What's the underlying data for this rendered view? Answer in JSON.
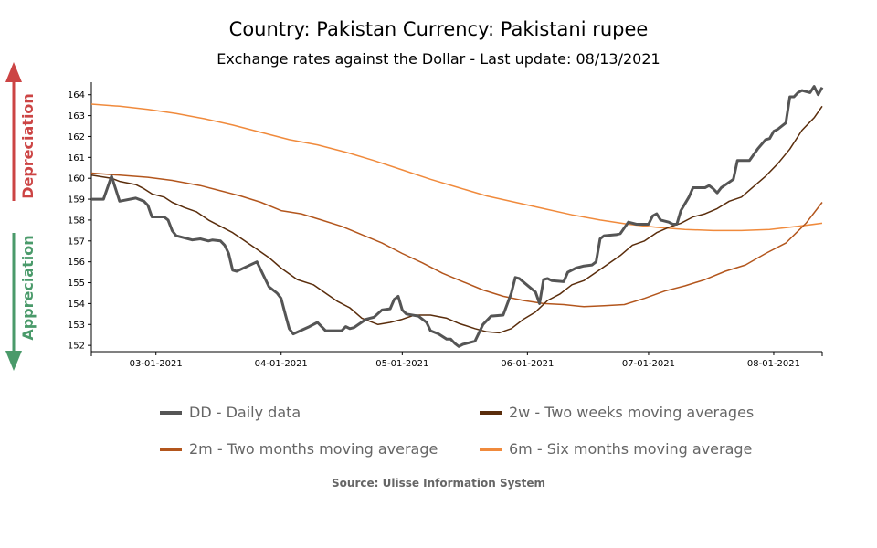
{
  "chart_data": {
    "type": "line",
    "title": "Country: Pakistan Currency: Pakistani rupee",
    "subtitle": "Exchange rates against the Dollar - Last update: 08/13/2021",
    "source": "Source: Ulisse Information System",
    "side_labels": {
      "up": "Depreciation",
      "down": "Appreciation",
      "up_color": "#cc4444",
      "down_color": "#4a9a6a"
    },
    "xlim": [
      "2021-02-13",
      "2021-08-13"
    ],
    "ylim": [
      151.7,
      164.6
    ],
    "x_ticks": [
      {
        "date": "2021-03-01",
        "label": "03-01-2021"
      },
      {
        "date": "2021-04-01",
        "label": "04-01-2021"
      },
      {
        "date": "2021-05-01",
        "label": "05-01-2021"
      },
      {
        "date": "2021-06-01",
        "label": "06-01-2021"
      },
      {
        "date": "2021-07-01",
        "label": "07-01-2021"
      },
      {
        "date": "2021-08-01",
        "label": "08-01-2021"
      }
    ],
    "y_ticks": [
      152,
      153,
      154,
      155,
      156,
      157,
      158,
      159,
      160,
      161,
      162,
      163,
      164
    ],
    "series": [
      {
        "name": "DD - Daily data",
        "color": "#555555",
        "width": 3,
        "points": [
          [
            "2021-02-13",
            159.0
          ],
          [
            "2021-02-16",
            159.0
          ],
          [
            "2021-02-18",
            160.1
          ],
          [
            "2021-02-20",
            158.9
          ],
          [
            "2021-02-24",
            159.05
          ],
          [
            "2021-02-26",
            158.9
          ],
          [
            "2021-02-27",
            158.7
          ],
          [
            "2021-02-28",
            158.15
          ],
          [
            "2021-03-03",
            158.15
          ],
          [
            "2021-03-04",
            158.0
          ],
          [
            "2021-03-05",
            157.5
          ],
          [
            "2021-03-06",
            157.25
          ],
          [
            "2021-03-10",
            157.05
          ],
          [
            "2021-03-12",
            157.1
          ],
          [
            "2021-03-14",
            157.0
          ],
          [
            "2021-03-15",
            157.05
          ],
          [
            "2021-03-17",
            157.0
          ],
          [
            "2021-03-18",
            156.8
          ],
          [
            "2021-03-19",
            156.4
          ],
          [
            "2021-03-20",
            155.6
          ],
          [
            "2021-03-21",
            155.55
          ],
          [
            "2021-03-26",
            156.0
          ],
          [
            "2021-03-29",
            154.8
          ],
          [
            "2021-03-31",
            154.5
          ],
          [
            "2021-04-01",
            154.25
          ],
          [
            "2021-04-02",
            153.5
          ],
          [
            "2021-04-03",
            152.8
          ],
          [
            "2021-04-04",
            152.55
          ],
          [
            "2021-04-08",
            152.9
          ],
          [
            "2021-04-10",
            153.1
          ],
          [
            "2021-04-12",
            152.7
          ],
          [
            "2021-04-15",
            152.7
          ],
          [
            "2021-04-16",
            152.7
          ],
          [
            "2021-04-17",
            152.9
          ],
          [
            "2021-04-18",
            152.8
          ],
          [
            "2021-04-19",
            152.85
          ],
          [
            "2021-04-22",
            153.25
          ],
          [
            "2021-04-24",
            153.35
          ],
          [
            "2021-04-26",
            153.7
          ],
          [
            "2021-04-28",
            153.75
          ],
          [
            "2021-04-29",
            154.2
          ],
          [
            "2021-04-30",
            154.35
          ],
          [
            "2021-05-01",
            153.7
          ],
          [
            "2021-05-02",
            153.5
          ],
          [
            "2021-05-05",
            153.4
          ],
          [
            "2021-05-07",
            153.1
          ],
          [
            "2021-05-08",
            152.7
          ],
          [
            "2021-05-10",
            152.55
          ],
          [
            "2021-05-12",
            152.3
          ],
          [
            "2021-05-13",
            152.3
          ],
          [
            "2021-05-14",
            152.1
          ],
          [
            "2021-05-15",
            151.95
          ],
          [
            "2021-05-16",
            152.05
          ],
          [
            "2021-05-19",
            152.2
          ],
          [
            "2021-05-21",
            153.0
          ],
          [
            "2021-05-23",
            153.4
          ],
          [
            "2021-05-26",
            153.45
          ],
          [
            "2021-05-28",
            154.5
          ],
          [
            "2021-05-29",
            155.25
          ],
          [
            "2021-05-30",
            155.2
          ],
          [
            "2021-06-03",
            154.55
          ],
          [
            "2021-06-04",
            154.0
          ],
          [
            "2021-06-05",
            155.15
          ],
          [
            "2021-06-06",
            155.2
          ],
          [
            "2021-06-07",
            155.1
          ],
          [
            "2021-06-10",
            155.05
          ],
          [
            "2021-06-11",
            155.5
          ],
          [
            "2021-06-13",
            155.7
          ],
          [
            "2021-06-15",
            155.8
          ],
          [
            "2021-06-17",
            155.85
          ],
          [
            "2021-06-18",
            156.0
          ],
          [
            "2021-06-19",
            157.1
          ],
          [
            "2021-06-20",
            157.25
          ],
          [
            "2021-06-23",
            157.3
          ],
          [
            "2021-06-24",
            157.35
          ],
          [
            "2021-06-26",
            157.9
          ],
          [
            "2021-06-28",
            157.8
          ],
          [
            "2021-06-29",
            157.8
          ],
          [
            "2021-07-01",
            157.8
          ],
          [
            "2021-07-02",
            158.2
          ],
          [
            "2021-07-03",
            158.3
          ],
          [
            "2021-07-04",
            158.0
          ],
          [
            "2021-07-06",
            157.9
          ],
          [
            "2021-07-07",
            157.8
          ],
          [
            "2021-07-08",
            157.8
          ],
          [
            "2021-07-09",
            158.45
          ],
          [
            "2021-07-11",
            159.1
          ],
          [
            "2021-07-12",
            159.55
          ],
          [
            "2021-07-14",
            159.55
          ],
          [
            "2021-07-15",
            159.55
          ],
          [
            "2021-07-16",
            159.65
          ],
          [
            "2021-07-17",
            159.5
          ],
          [
            "2021-07-18",
            159.3
          ],
          [
            "2021-07-19",
            159.55
          ],
          [
            "2021-07-22",
            159.95
          ],
          [
            "2021-07-23",
            160.85
          ],
          [
            "2021-07-26",
            160.85
          ],
          [
            "2021-07-28",
            161.4
          ],
          [
            "2021-07-30",
            161.85
          ],
          [
            "2021-07-31",
            161.9
          ],
          [
            "2021-08-01",
            162.25
          ],
          [
            "2021-08-02",
            162.35
          ],
          [
            "2021-08-04",
            162.65
          ],
          [
            "2021-08-05",
            163.9
          ],
          [
            "2021-08-06",
            163.9
          ],
          [
            "2021-08-07",
            164.1
          ],
          [
            "2021-08-08",
            164.2
          ],
          [
            "2021-08-10",
            164.1
          ],
          [
            "2021-08-11",
            164.4
          ],
          [
            "2021-08-12",
            164.0
          ],
          [
            "2021-08-13",
            164.35
          ]
        ]
      },
      {
        "name": "2w - Two weeks moving averages",
        "color": "#5a2d0c",
        "width": 1.5,
        "points": [
          [
            "2021-02-13",
            160.15
          ],
          [
            "2021-02-18",
            160.0
          ],
          [
            "2021-02-20",
            159.85
          ],
          [
            "2021-02-24",
            159.7
          ],
          [
            "2021-02-26",
            159.5
          ],
          [
            "2021-02-28",
            159.25
          ],
          [
            "2021-03-03",
            159.1
          ],
          [
            "2021-03-05",
            158.85
          ],
          [
            "2021-03-08",
            158.6
          ],
          [
            "2021-03-11",
            158.4
          ],
          [
            "2021-03-14",
            158.0
          ],
          [
            "2021-03-17",
            157.7
          ],
          [
            "2021-03-20",
            157.4
          ],
          [
            "2021-03-23",
            157.0
          ],
          [
            "2021-03-26",
            156.6
          ],
          [
            "2021-03-29",
            156.2
          ],
          [
            "2021-04-01",
            155.7
          ],
          [
            "2021-04-05",
            155.15
          ],
          [
            "2021-04-09",
            154.9
          ],
          [
            "2021-04-12",
            154.5
          ],
          [
            "2021-04-15",
            154.1
          ],
          [
            "2021-04-18",
            153.8
          ],
          [
            "2021-04-21",
            153.3
          ],
          [
            "2021-04-25",
            153.0
          ],
          [
            "2021-04-28",
            153.1
          ],
          [
            "2021-05-01",
            153.25
          ],
          [
            "2021-05-04",
            153.45
          ],
          [
            "2021-05-08",
            153.45
          ],
          [
            "2021-05-12",
            153.3
          ],
          [
            "2021-05-15",
            153.05
          ],
          [
            "2021-05-19",
            152.8
          ],
          [
            "2021-05-22",
            152.65
          ],
          [
            "2021-05-25",
            152.6
          ],
          [
            "2021-05-28",
            152.8
          ],
          [
            "2021-05-31",
            153.25
          ],
          [
            "2021-06-03",
            153.6
          ],
          [
            "2021-06-06",
            154.15
          ],
          [
            "2021-06-09",
            154.45
          ],
          [
            "2021-06-12",
            154.9
          ],
          [
            "2021-06-15",
            155.1
          ],
          [
            "2021-06-18",
            155.5
          ],
          [
            "2021-06-21",
            155.9
          ],
          [
            "2021-06-24",
            156.3
          ],
          [
            "2021-06-27",
            156.8
          ],
          [
            "2021-06-30",
            157.0
          ],
          [
            "2021-07-03",
            157.4
          ],
          [
            "2021-07-06",
            157.65
          ],
          [
            "2021-07-09",
            157.85
          ],
          [
            "2021-07-12",
            158.15
          ],
          [
            "2021-07-15",
            158.3
          ],
          [
            "2021-07-18",
            158.55
          ],
          [
            "2021-07-21",
            158.9
          ],
          [
            "2021-07-24",
            159.1
          ],
          [
            "2021-07-27",
            159.6
          ],
          [
            "2021-07-30",
            160.1
          ],
          [
            "2021-08-02",
            160.7
          ],
          [
            "2021-08-05",
            161.4
          ],
          [
            "2021-08-08",
            162.3
          ],
          [
            "2021-08-11",
            162.9
          ],
          [
            "2021-08-13",
            163.45
          ]
        ]
      },
      {
        "name": "2m - Two months moving average",
        "color": "#b3561d",
        "width": 1.5,
        "points": [
          [
            "2021-02-13",
            160.25
          ],
          [
            "2021-02-20",
            160.15
          ],
          [
            "2021-02-27",
            160.05
          ],
          [
            "2021-03-05",
            159.9
          ],
          [
            "2021-03-12",
            159.65
          ],
          [
            "2021-03-17",
            159.4
          ],
          [
            "2021-03-22",
            159.15
          ],
          [
            "2021-03-27",
            158.85
          ],
          [
            "2021-04-01",
            158.45
          ],
          [
            "2021-04-06",
            158.3
          ],
          [
            "2021-04-11",
            158.0
          ],
          [
            "2021-04-16",
            157.7
          ],
          [
            "2021-04-21",
            157.3
          ],
          [
            "2021-04-26",
            156.9
          ],
          [
            "2021-05-01",
            156.4
          ],
          [
            "2021-05-06",
            155.95
          ],
          [
            "2021-05-11",
            155.45
          ],
          [
            "2021-05-16",
            155.05
          ],
          [
            "2021-05-21",
            154.65
          ],
          [
            "2021-05-26",
            154.35
          ],
          [
            "2021-05-31",
            154.15
          ],
          [
            "2021-06-05",
            154.0
          ],
          [
            "2021-06-10",
            153.95
          ],
          [
            "2021-06-15",
            153.85
          ],
          [
            "2021-06-20",
            153.9
          ],
          [
            "2021-06-25",
            153.95
          ],
          [
            "2021-06-30",
            154.25
          ],
          [
            "2021-07-05",
            154.6
          ],
          [
            "2021-07-10",
            154.85
          ],
          [
            "2021-07-15",
            155.15
          ],
          [
            "2021-07-20",
            155.55
          ],
          [
            "2021-07-25",
            155.85
          ],
          [
            "2021-07-30",
            156.4
          ],
          [
            "2021-08-04",
            156.9
          ],
          [
            "2021-08-09",
            157.85
          ],
          [
            "2021-08-13",
            158.85
          ]
        ]
      },
      {
        "name": "6m - Six months moving average",
        "color": "#f08a3c",
        "width": 1.5,
        "points": [
          [
            "2021-02-13",
            163.55
          ],
          [
            "2021-02-20",
            163.45
          ],
          [
            "2021-02-27",
            163.3
          ],
          [
            "2021-03-06",
            163.1
          ],
          [
            "2021-03-13",
            162.85
          ],
          [
            "2021-03-20",
            162.55
          ],
          [
            "2021-03-27",
            162.2
          ],
          [
            "2021-04-03",
            161.85
          ],
          [
            "2021-04-10",
            161.6
          ],
          [
            "2021-04-17",
            161.25
          ],
          [
            "2021-04-24",
            160.85
          ],
          [
            "2021-05-01",
            160.4
          ],
          [
            "2021-05-08",
            159.95
          ],
          [
            "2021-05-15",
            159.55
          ],
          [
            "2021-05-22",
            159.15
          ],
          [
            "2021-05-29",
            158.85
          ],
          [
            "2021-06-05",
            158.55
          ],
          [
            "2021-06-12",
            158.25
          ],
          [
            "2021-06-19",
            158.0
          ],
          [
            "2021-06-26",
            157.8
          ],
          [
            "2021-07-03",
            157.65
          ],
          [
            "2021-07-10",
            157.55
          ],
          [
            "2021-07-17",
            157.5
          ],
          [
            "2021-07-24",
            157.5
          ],
          [
            "2021-07-31",
            157.55
          ],
          [
            "2021-08-07",
            157.7
          ],
          [
            "2021-08-13",
            157.85
          ]
        ]
      }
    ]
  }
}
